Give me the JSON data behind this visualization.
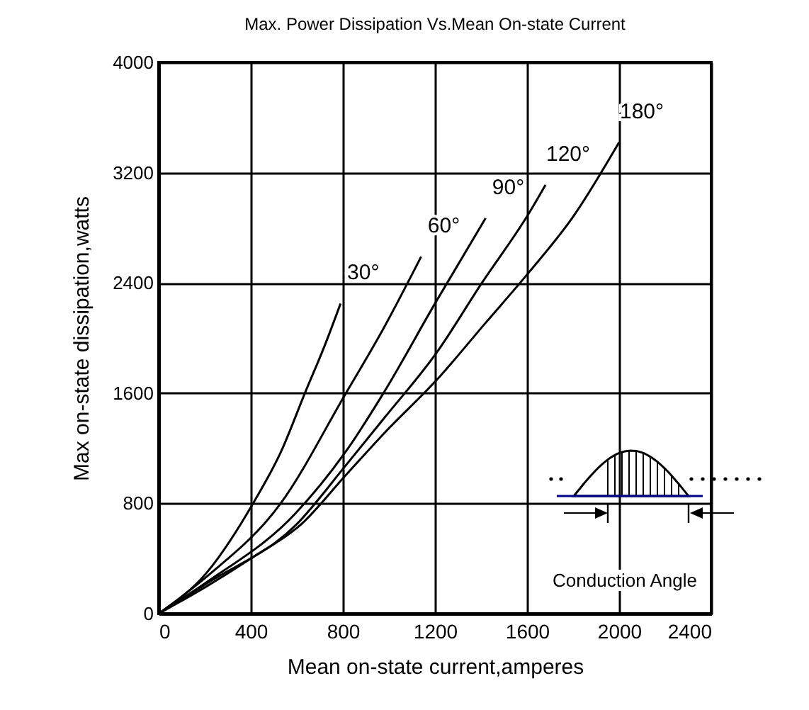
{
  "chart_data": {
    "type": "line",
    "title": "Max. Power Dissipation Vs.Mean On-state Current",
    "xlabel": "Mean on-state current,amperes",
    "ylabel": "Max on-state dissipation,watts",
    "annotations": [
      "Conduction Angle"
    ],
    "series": [
      {
        "name": "30°",
        "color": "#000000",
        "x": [
          0,
          210,
          410,
          530,
          640,
          720,
          790
        ],
        "values": [
          0,
          300,
          800,
          1170,
          1620,
          1940,
          2250
        ]
      },
      {
        "name": "60°",
        "color": "#000000",
        "x": [
          0,
          210,
          530,
          810,
          980,
          1140
        ],
        "values": [
          0,
          270,
          800,
          1590,
          2080,
          2590
        ]
      },
      {
        "name": "90°",
        "color": "#000000",
        "x": [
          0,
          210,
          590,
          810,
          980,
          1200,
          1420
        ],
        "values": [
          0,
          230,
          720,
          1170,
          1610,
          2250,
          2870
        ]
      },
      {
        "name": "120°",
        "color": "#000000",
        "x": [
          0,
          210,
          600,
          810,
          980,
          1210,
          1400,
          1610,
          1680
        ],
        "values": [
          0,
          220,
          650,
          1070,
          1420,
          1900,
          2390,
          2910,
          3110
        ]
      },
      {
        "name": "180°",
        "color": "#000000",
        "x": [
          0,
          210,
          410,
          620,
          810,
          980,
          1210,
          1420,
          1610,
          1800,
          2000
        ],
        "values": [
          0,
          200,
          410,
          650,
          1000,
          1310,
          1700,
          2110,
          2480,
          2880,
          3420
        ]
      }
    ],
    "xlim": [
      0,
      2400
    ],
    "xticks": [
      0,
      400,
      800,
      1200,
      1600,
      2000,
      2400
    ],
    "ylim": [
      0,
      4000
    ],
    "yticks": [
      0,
      800,
      1600,
      2400,
      3200,
      4000
    ],
    "grid": true,
    "legend": false,
    "marker": "none",
    "line_style": "solid"
  }
}
